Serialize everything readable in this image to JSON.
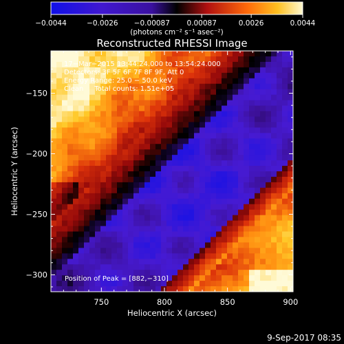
{
  "chart_data": {
    "type": "heatmap",
    "title": "Reconstructed RHESSI Image",
    "xlabel": "Heliocentric X (arcsec)",
    "ylabel": "Heliocentric Y (arcsec)",
    "xlim": [
      710,
      902
    ],
    "ylim": [
      -314,
      -115
    ],
    "xticks": [
      750,
      800,
      850,
      900
    ],
    "yticks": [
      -150,
      -200,
      -250,
      -300
    ],
    "xtick_labels": [
      "750",
      "800",
      "850",
      "900"
    ],
    "ytick_labels": [
      "−150",
      "−200",
      "−250",
      "−300"
    ],
    "colorbar": {
      "ticks": [
        -0.0044,
        -0.0026,
        -0.00087,
        0.00087,
        0.0026,
        0.0044
      ],
      "tick_labels": [
        "−0.0044",
        "−0.0026",
        "−0.00087",
        "0.00087",
        "0.0026",
        "0.0044"
      ],
      "range": [
        -0.0044,
        0.0044
      ],
      "unit_label": "(photons cm⁻² s⁻¹ asec⁻²)"
    },
    "annotations": [
      "17−Mar−2015 13:44:24.000 to 13:54:24.000",
      "Detectors: 3F 5F 6F 7F 8F 9F, Att 0",
      "Energy Range: 25.0 − 50.0 keV",
      "Clean     Total counts: 1.51e+05",
      "Position of Peak = [882,−310]"
    ],
    "peak": [
      882,
      -310
    ],
    "colors": {
      "negative_low": "#1a10e0",
      "negative_mid": "#5a1ab8",
      "zero": "#000000",
      "positive_low": "#c8180a",
      "positive_mid": "#ff8a10",
      "positive_high": "#fff0b0"
    }
  },
  "footer": {
    "date_stamp": "9-Sep-2017 08:35"
  }
}
